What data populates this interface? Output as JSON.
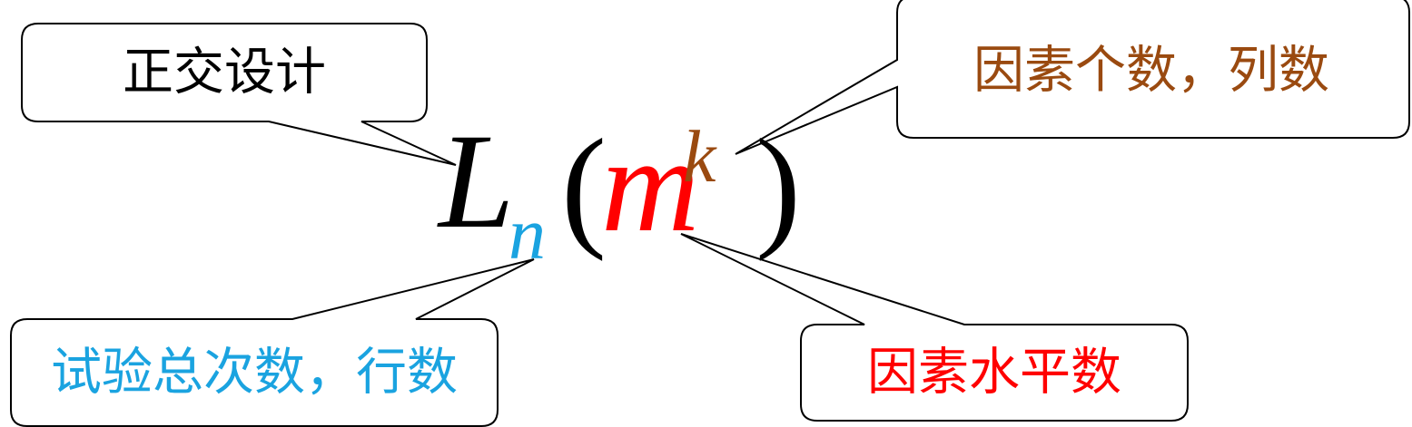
{
  "formula": {
    "symbol": "L",
    "subscript": "n",
    "open_paren": "(",
    "base": "m",
    "exponent": "k",
    "close_paren": ")"
  },
  "callouts": {
    "design": {
      "text": "正交设计"
    },
    "factors": {
      "text": "因素个数，列数"
    },
    "trials": {
      "text": "试验总次数，行数"
    },
    "levels": {
      "text": "因素水平数"
    }
  },
  "colors": {
    "symbol": "#000000",
    "subscript": "#1aa3e0",
    "base": "#ff0000",
    "exponent": "#9a4a10",
    "design_text": "#000000",
    "factors_text": "#9a4a10",
    "trials_text": "#1aa3e0",
    "levels_text": "#ff0000"
  }
}
